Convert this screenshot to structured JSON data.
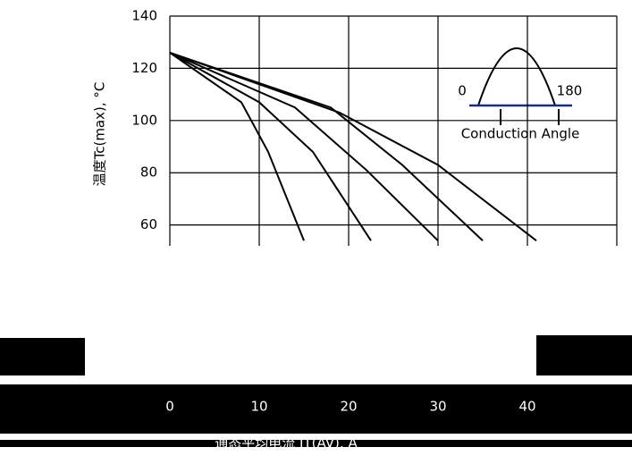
{
  "chart_data": {
    "type": "line",
    "y_label": "温度Tc(max), °C",
    "x_label": "通态平均电流 IT(AV), A",
    "inset_labels": [
      "0",
      "180",
      "Conduction Angle"
    ],
    "xlim": [
      0,
      50
    ],
    "xticks": [
      0,
      10,
      20,
      30,
      40
    ],
    "ylim": [
      52,
      140
    ],
    "yticks": [
      60,
      80,
      100,
      120,
      140
    ],
    "grid": true,
    "series": [
      {
        "color": "#000000",
        "x": [
          0,
          8,
          11,
          15
        ],
        "values": [
          126,
          107,
          88,
          54
        ]
      },
      {
        "color": "#000000",
        "x": [
          0,
          10,
          16,
          22.5
        ],
        "values": [
          126,
          107,
          88,
          54
        ]
      },
      {
        "color": "#000000",
        "x": [
          0,
          14,
          22,
          30
        ],
        "values": [
          126,
          105,
          81,
          54
        ]
      },
      {
        "color": "#000000",
        "x": [
          0,
          18,
          26,
          35
        ],
        "values": [
          126,
          105,
          83,
          54
        ]
      },
      {
        "color": "#000000",
        "x": [
          0,
          19,
          30,
          41
        ],
        "values": [
          126,
          103,
          83,
          54
        ]
      }
    ]
  }
}
